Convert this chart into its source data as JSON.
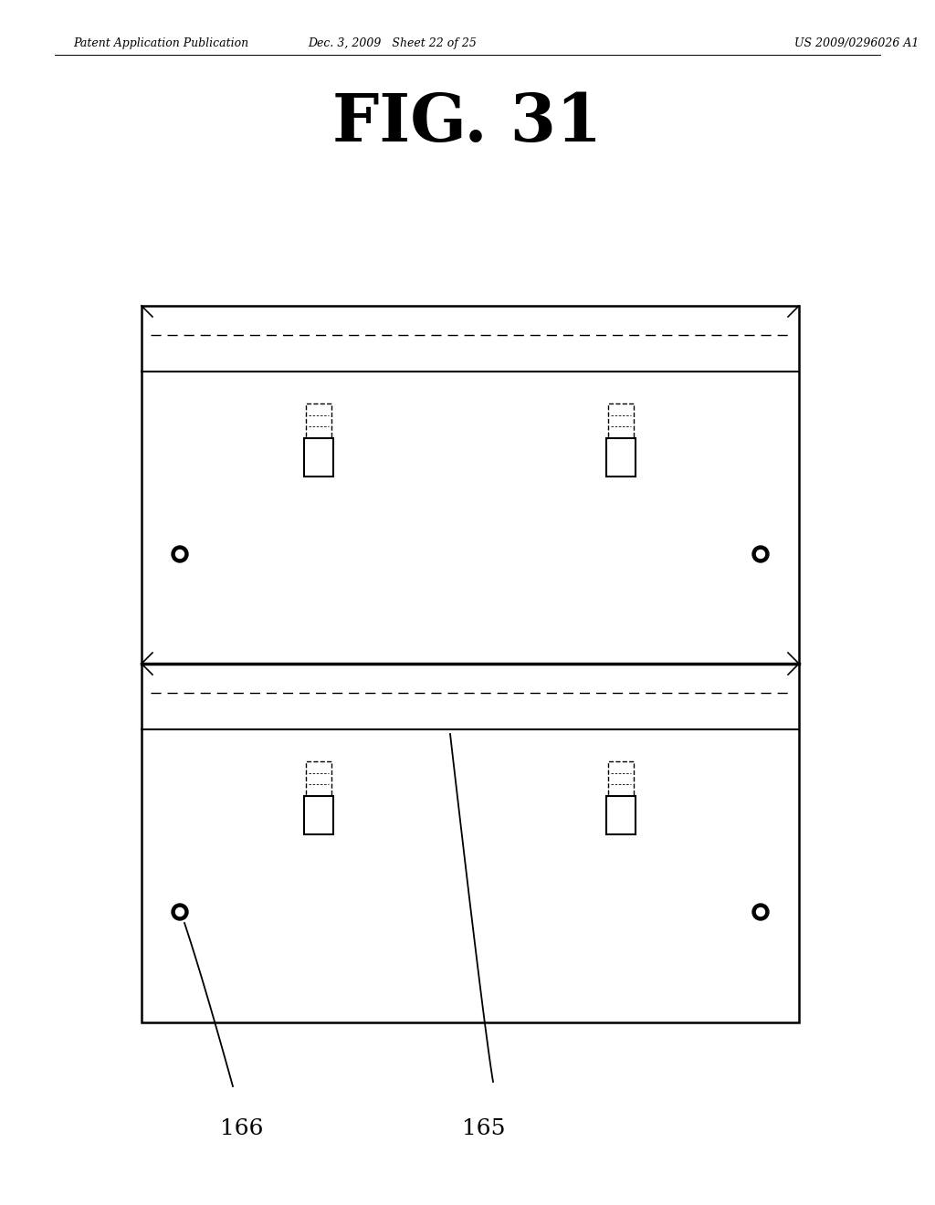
{
  "header_left": "Patent Application Publication",
  "header_mid": "Dec. 3, 2009   Sheet 22 of 25",
  "header_right": "US 2009/0296026 A1",
  "title": "FIG. 31",
  "bg_color": "#ffffff",
  "label_165": "165",
  "label_166": "166"
}
